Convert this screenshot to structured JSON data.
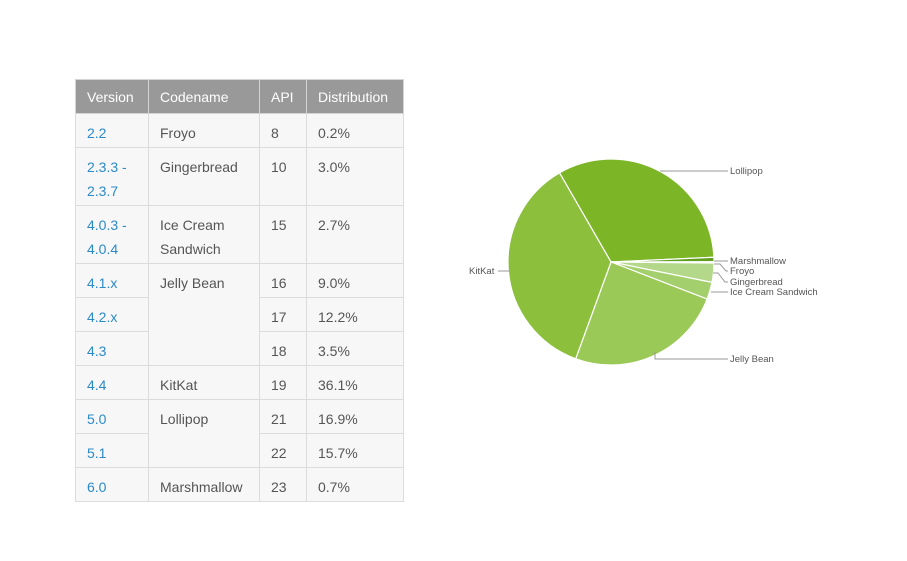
{
  "table": {
    "headers": [
      "Version",
      "Codename",
      "API",
      "Distribution"
    ],
    "rows": [
      {
        "version": "2.2",
        "codename": "Froyo",
        "api": "8",
        "distribution": "0.2%"
      },
      {
        "version": "2.3.3 -\n2.3.7",
        "codename": "Gingerbread",
        "api": "10",
        "distribution": "3.0%"
      },
      {
        "version": "4.0.3 -\n4.0.4",
        "codename": "Ice Cream\nSandwich",
        "api": "15",
        "distribution": "2.7%"
      },
      {
        "version": "4.1.x",
        "codename": "Jelly Bean",
        "api": "16",
        "distribution": "9.0%"
      },
      {
        "version": "4.2.x",
        "codename": "",
        "api": "17",
        "distribution": "12.2%"
      },
      {
        "version": "4.3",
        "codename": "",
        "api": "18",
        "distribution": "3.5%"
      },
      {
        "version": "4.4",
        "codename": "KitKat",
        "api": "19",
        "distribution": "36.1%"
      },
      {
        "version": "5.0",
        "codename": "Lollipop",
        "api": "21",
        "distribution": "16.9%"
      },
      {
        "version": "5.1",
        "codename": "",
        "api": "22",
        "distribution": "15.7%"
      },
      {
        "version": "6.0",
        "codename": "Marshmallow",
        "api": "23",
        "distribution": "0.7%"
      }
    ]
  },
  "chart_data": {
    "type": "pie",
    "title": "",
    "categories": [
      "Lollipop",
      "Marshmallow",
      "Froyo",
      "Gingerbread",
      "Ice Cream Sandwich",
      "Jelly Bean",
      "KitKat"
    ],
    "values": [
      32.6,
      0.7,
      0.2,
      3.0,
      2.7,
      24.7,
      36.1
    ],
    "colors": [
      "#7cb627",
      "#5f9e1e",
      "#d6e8b6",
      "#b4d889",
      "#a3cf6c",
      "#9bc957",
      "#8bbf3c"
    ],
    "start_angle_deg": -120,
    "direction": "clockwise",
    "legend": "labels with leader lines"
  },
  "colors": {
    "header_bg": "#999999",
    "cell_bg": "#f7f7f7",
    "link": "#2b8ac8",
    "text": "#555555"
  }
}
